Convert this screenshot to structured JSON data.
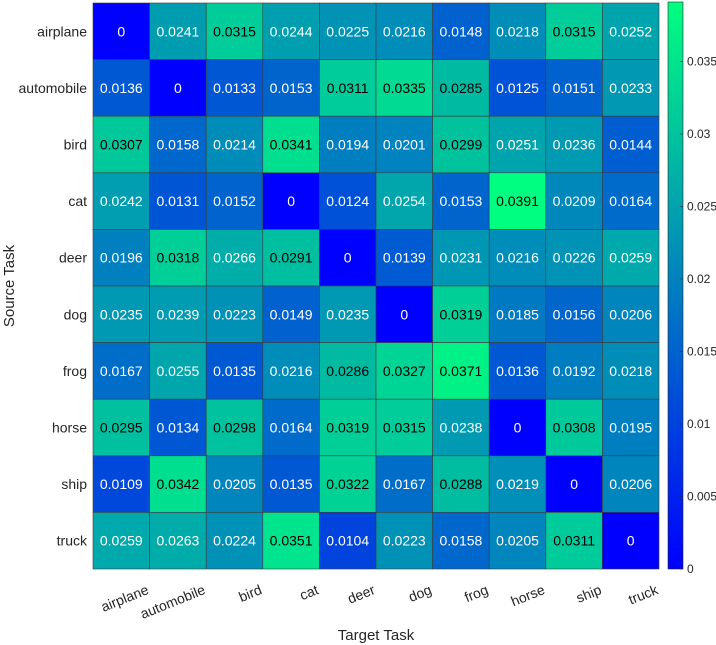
{
  "chart_data": {
    "type": "heatmap",
    "title": "",
    "xlabel": "Target Task",
    "ylabel": "Source Task",
    "x_categories": [
      "airplane",
      "automobile",
      "bird",
      "cat",
      "deer",
      "dog",
      "frog",
      "horse",
      "ship",
      "truck"
    ],
    "y_categories": [
      "airplane",
      "automobile",
      "bird",
      "cat",
      "deer",
      "dog",
      "frog",
      "horse",
      "ship",
      "truck"
    ],
    "values": [
      [
        0,
        0.0241,
        0.0315,
        0.0244,
        0.0225,
        0.0216,
        0.0148,
        0.0218,
        0.0315,
        0.0252
      ],
      [
        0.0136,
        0,
        0.0133,
        0.0153,
        0.0311,
        0.0335,
        0.0285,
        0.0125,
        0.0151,
        0.0233
      ],
      [
        0.0307,
        0.0158,
        0.0214,
        0.0341,
        0.0194,
        0.0201,
        0.0299,
        0.0251,
        0.0236,
        0.0144
      ],
      [
        0.0242,
        0.0131,
        0.0152,
        0,
        0.0124,
        0.0254,
        0.0153,
        0.0391,
        0.0209,
        0.0164
      ],
      [
        0.0196,
        0.0318,
        0.0266,
        0.0291,
        0,
        0.0139,
        0.0231,
        0.0216,
        0.0226,
        0.0259
      ],
      [
        0.0235,
        0.0239,
        0.0223,
        0.0149,
        0.0235,
        0,
        0.0319,
        0.0185,
        0.0156,
        0.0206
      ],
      [
        0.0167,
        0.0255,
        0.0135,
        0.0216,
        0.0286,
        0.0327,
        0.0371,
        0.0136,
        0.0192,
        0.0218
      ],
      [
        0.0295,
        0.0134,
        0.0298,
        0.0164,
        0.0319,
        0.0315,
        0.0238,
        0,
        0.0308,
        0.0195
      ],
      [
        0.0109,
        0.0342,
        0.0205,
        0.0135,
        0.0322,
        0.0167,
        0.0288,
        0.0219,
        0,
        0.0206
      ],
      [
        0.0259,
        0.0263,
        0.0224,
        0.0351,
        0.0104,
        0.0223,
        0.0158,
        0.0205,
        0.0311,
        0
      ]
    ],
    "colormap": "winter",
    "color_range": [
      0,
      0.0391
    ],
    "colorbar": {
      "ticks": [
        0,
        0.005,
        0.01,
        0.015,
        0.02,
        0.025,
        0.03,
        0.035
      ],
      "tick_labels": [
        "0",
        "0.005",
        "0.01",
        "0.015",
        "0.02",
        "0.025",
        "0.03",
        "0.035"
      ]
    },
    "grid": true,
    "colors": {
      "low": "#0000ff",
      "high": "#00ff80",
      "text_dark": "#000000",
      "text_light": "#ffffff",
      "axis": "#262626",
      "cell_border": "#3c3c3c"
    }
  }
}
